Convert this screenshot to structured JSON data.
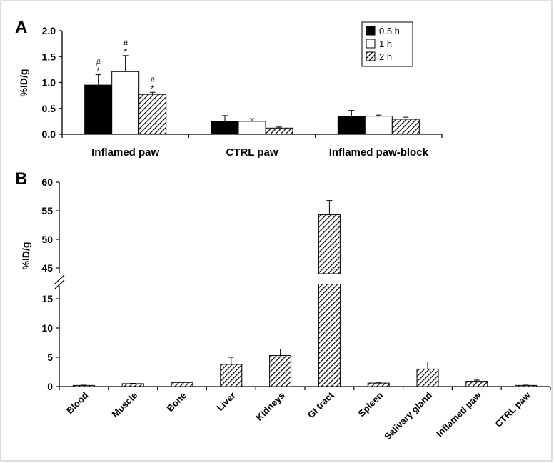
{
  "chart_data": [
    {
      "panel": "A",
      "type": "bar",
      "ylabel": "%ID/g",
      "ylim": [
        0,
        2.0
      ],
      "yticks": [
        "0.0",
        "0.5",
        "1.0",
        "1.5",
        "2.0"
      ],
      "categories": [
        "Inflamed paw",
        "CTRL paw",
        "Inflamed paw-block"
      ],
      "legend_position": "top-right",
      "series": [
        {
          "name": "0.5 h",
          "color": "#000000",
          "fill": "solid-black",
          "values": [
            0.95,
            0.25,
            0.34
          ],
          "errors": [
            0.2,
            0.11,
            0.12
          ],
          "annotations": [
            "#\n*",
            "",
            ""
          ]
        },
        {
          "name": "1 h",
          "color": "#ffffff",
          "fill": "white",
          "values": [
            1.21,
            0.25,
            0.35
          ],
          "errors": [
            0.31,
            0.05,
            0.02
          ],
          "annotations": [
            "#\n*",
            "",
            ""
          ]
        },
        {
          "name": "2 h",
          "color": "#888888",
          "fill": "diagonal-hatch",
          "values": [
            0.77,
            0.12,
            0.29
          ],
          "errors": [
            0.04,
            0.02,
            0.04
          ],
          "annotations": [
            "#\n*",
            "",
            ""
          ]
        }
      ]
    },
    {
      "panel": "B",
      "type": "bar",
      "ylabel": "%ID/g",
      "axis_break": {
        "from": 17.5,
        "to": 44
      },
      "ylim": [
        0,
        60
      ],
      "yticks": [
        "0",
        "5",
        "10",
        "15",
        "45",
        "50",
        "55",
        "60"
      ],
      "categories": [
        "Blood",
        "Muscle",
        "Bone",
        "Liver",
        "Kidneys",
        "GI tract",
        "Spleen",
        "Salivary gland",
        "Inflamed paw",
        "CTRL paw"
      ],
      "series": [
        {
          "fill": "diagonal-hatch",
          "values": [
            0.2,
            0.5,
            0.7,
            3.8,
            5.3,
            54.3,
            0.6,
            3.0,
            0.9,
            0.2
          ],
          "errors": [
            0.05,
            0.05,
            0.1,
            1.2,
            1.1,
            2.5,
            0.05,
            1.2,
            0.2,
            0.05
          ]
        }
      ]
    }
  ],
  "labels": {
    "panel_a": "A",
    "panel_b": "B"
  }
}
